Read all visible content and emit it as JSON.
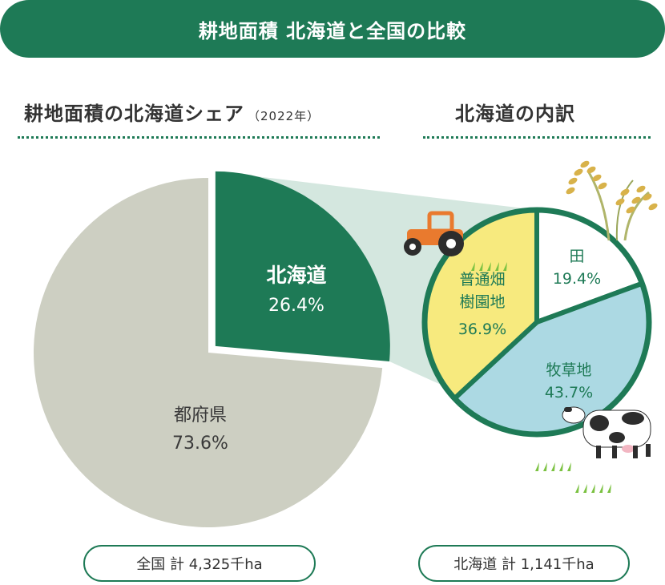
{
  "header": {
    "title": "耕地面積 北海道と全国の比較"
  },
  "left": {
    "title": "耕地面積の北海道シェア",
    "year": "（2022年）",
    "total": "全国 計 4,325千ha"
  },
  "right": {
    "title": "北海道の内訳",
    "total": "北海道 計 1,141千ha"
  },
  "colors": {
    "brand": "#1e7a56",
    "prefectures": "#cdcfc2",
    "hokkaido": "#1e7a56",
    "wedge": "#d4e7df",
    "field": "#f7ea7e",
    "pasture": "#acd9e3",
    "paddy": "#ffffff"
  },
  "icons": [
    "tractor-icon",
    "rice-plant-icon",
    "cow-icon",
    "grass-icon"
  ],
  "chart_data": [
    {
      "type": "pie",
      "title": "耕地面積の北海道シェア（2022年）",
      "categories": [
        "北海道",
        "都府県"
      ],
      "values": [
        26.4,
        73.6
      ],
      "unit": "%",
      "total": "全国 計 4,325千ha",
      "labels": [
        {
          "name": "北海道",
          "value": "26.4%"
        },
        {
          "name": "都府県",
          "value": "73.6%"
        }
      ]
    },
    {
      "type": "pie",
      "title": "北海道の内訳",
      "categories": [
        "田",
        "牧草地",
        "普通畑 樹園地"
      ],
      "values": [
        19.4,
        43.7,
        36.9
      ],
      "unit": "%",
      "total": "北海道 計 1,141千ha",
      "labels": [
        {
          "name": "田",
          "value": "19.4%"
        },
        {
          "name": "牧草地",
          "value": "43.7%"
        },
        {
          "name": "普通畑\n樹園地",
          "value": "36.9%"
        }
      ]
    }
  ]
}
